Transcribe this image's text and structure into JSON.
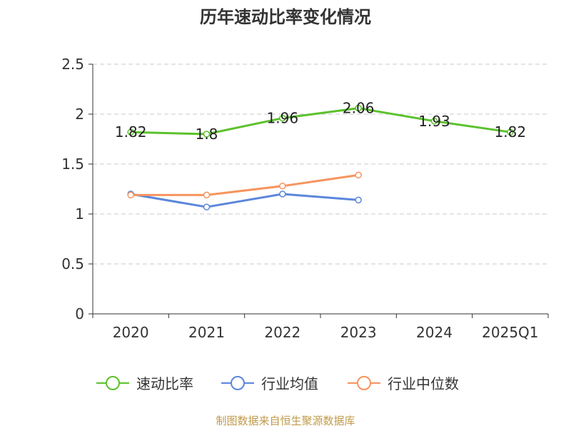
{
  "chart_data": {
    "type": "line",
    "title": "历年速动比率变化情况",
    "categories": [
      "2020",
      "2021",
      "2022",
      "2023",
      "2024",
      "2025Q1"
    ],
    "ylim": [
      0,
      2.5
    ],
    "yticks": [
      "0",
      "0.5",
      "1",
      "1.5",
      "2",
      "2.5"
    ],
    "grid": true,
    "legend_position": "bottom",
    "series": [
      {
        "name": "速动比率",
        "color": "#5cc12c",
        "values": [
          1.82,
          1.8,
          1.96,
          2.06,
          1.93,
          1.82
        ],
        "labels": [
          "1.82",
          "1.8",
          "1.96",
          "2.06",
          "1.93",
          "1.82"
        ]
      },
      {
        "name": "行业均值",
        "color": "#5b86db",
        "values": [
          1.2,
          1.07,
          1.2,
          1.14,
          null,
          null
        ]
      },
      {
        "name": "行业中位数",
        "color": "#f7945e",
        "values": [
          1.19,
          1.19,
          1.28,
          1.39,
          null,
          null
        ]
      }
    ]
  },
  "source": "制图数据来自恒生聚源数据库"
}
